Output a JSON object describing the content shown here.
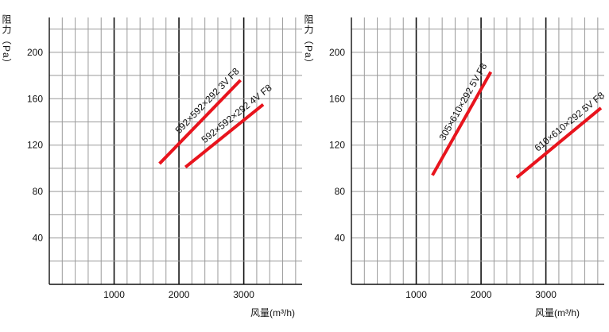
{
  "chart_data": [
    {
      "type": "line",
      "ylabel": "阻力（Pa）",
      "xlabel": "风量(m³/h)",
      "xlim": [
        0,
        3900
      ],
      "ylim": [
        0,
        230
      ],
      "xticks": [
        {
          "value": 1000,
          "label": "1000"
        },
        {
          "value": 2000,
          "label": "2000"
        },
        {
          "value": 3000,
          "label": "3000"
        }
      ],
      "yticks": [
        {
          "value": 40,
          "label": "40"
        },
        {
          "value": 80,
          "label": "80"
        },
        {
          "value": 120,
          "label": "120"
        },
        {
          "value": 160,
          "label": "160"
        },
        {
          "value": 200,
          "label": "200"
        }
      ],
      "grid": true,
      "line_color": "#e8141d",
      "series": [
        {
          "name": "592×592×292 3V F8",
          "x": [
            1700,
            2950
          ],
          "y": [
            104,
            176
          ]
        },
        {
          "name": "592×592×292 4V F8",
          "x": [
            2100,
            3300
          ],
          "y": [
            101,
            155
          ]
        }
      ]
    },
    {
      "type": "line",
      "ylabel": "阻力（Pa）",
      "xlabel": "风量(m³/h)",
      "xlim": [
        0,
        3900
      ],
      "ylim": [
        0,
        230
      ],
      "xticks": [
        {
          "value": 1000,
          "label": "1000"
        },
        {
          "value": 2000,
          "label": "2000"
        },
        {
          "value": 3000,
          "label": "3000"
        }
      ],
      "yticks": [
        {
          "value": 40,
          "label": "40"
        },
        {
          "value": 80,
          "label": "80"
        },
        {
          "value": 120,
          "label": "120"
        },
        {
          "value": 160,
          "label": "160"
        },
        {
          "value": 200,
          "label": "200"
        }
      ],
      "grid": true,
      "line_color": "#e8141d",
      "series": [
        {
          "name": "305×610×292 5V F8",
          "x": [
            1250,
            2150
          ],
          "y": [
            94,
            183
          ]
        },
        {
          "name": "610×610×292 5V F8",
          "x": [
            2550,
            3850
          ],
          "y": [
            92,
            152
          ]
        }
      ]
    }
  ]
}
